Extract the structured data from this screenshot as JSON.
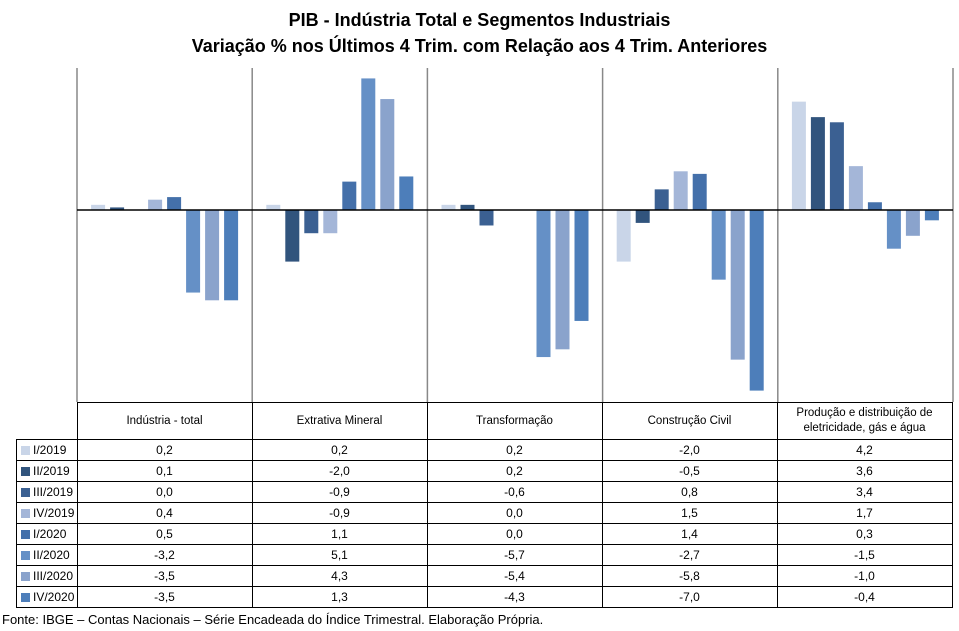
{
  "chart_data": {
    "type": "bar",
    "title": "PIB - Indústria Total e Segmentos Industriais",
    "subtitle": "Variação % nos Últimos 4 Trim. com Relação aos 4 Trim. Anteriores",
    "xlabel": "",
    "ylabel": "",
    "ylim": [
      -7.5,
      5.5
    ],
    "grid": "vertical category separators",
    "legend": "data-table-left",
    "categories": [
      "Indústria - total",
      "Extrativa Mineral",
      "Transformação",
      "Construção Civil",
      "Produção e distribuição de eletricidade, gás e água"
    ],
    "series": [
      {
        "name": "I/2019",
        "color": "#C9D5E8",
        "values": [
          0.2,
          0.2,
          0.2,
          -2.0,
          4.2
        ],
        "labels": [
          "0,2",
          "0,2",
          "0,2",
          "-2,0",
          "4,2"
        ]
      },
      {
        "name": "II/2019",
        "color": "#31547D",
        "values": [
          0.1,
          -2.0,
          0.2,
          -0.5,
          3.6
        ],
        "labels": [
          "0,1",
          "-2,0",
          "0,2",
          "-0,5",
          "3,6"
        ]
      },
      {
        "name": "III/2019",
        "color": "#3B6092",
        "values": [
          0.0,
          -0.9,
          -0.6,
          0.8,
          3.4
        ],
        "labels": [
          "0,0",
          "-0,9",
          "-0,6",
          "0,8",
          "3,4"
        ]
      },
      {
        "name": "IV/2019",
        "color": "#A4B6D8",
        "values": [
          0.4,
          -0.9,
          0.0,
          1.5,
          1.7
        ],
        "labels": [
          "0,4",
          "-0,9",
          "0,0",
          "1,5",
          "1,7"
        ]
      },
      {
        "name": "I/2020",
        "color": "#4470AA",
        "values": [
          0.5,
          1.1,
          0.0,
          1.4,
          0.3
        ],
        "labels": [
          "0,5",
          "1,1",
          "0,0",
          "1,4",
          "0,3"
        ]
      },
      {
        "name": "II/2020",
        "color": "#6590C6",
        "values": [
          -3.2,
          5.1,
          -5.7,
          -2.7,
          -1.5
        ],
        "labels": [
          "-3,2",
          "5,1",
          "-5,7",
          "-2,7",
          "-1,5"
        ]
      },
      {
        "name": "III/2020",
        "color": "#8AA3CC",
        "values": [
          -3.5,
          4.3,
          -5.4,
          -5.8,
          -1.0
        ],
        "labels": [
          "-3,5",
          "4,3",
          "-5,4",
          "-5,8",
          "-1,0"
        ]
      },
      {
        "name": "IV/2020",
        "color": "#4D7EBA",
        "values": [
          -3.5,
          1.3,
          -4.3,
          -7.0,
          -0.4
        ],
        "labels": [
          "-3,5",
          "1,3",
          "-4,3",
          "-7,0",
          "-0,4"
        ]
      }
    ]
  },
  "table": {
    "headers": [
      "Indústria - total",
      "Extrativa Mineral",
      "Transformação",
      "Construção Civil",
      "Produção e distribuição de eletricidade, gás e água"
    ]
  },
  "footer": "Fonte: IBGE – Contas Nacionais – Série Encadeada do Índice Trimestral. Elaboração Própria."
}
